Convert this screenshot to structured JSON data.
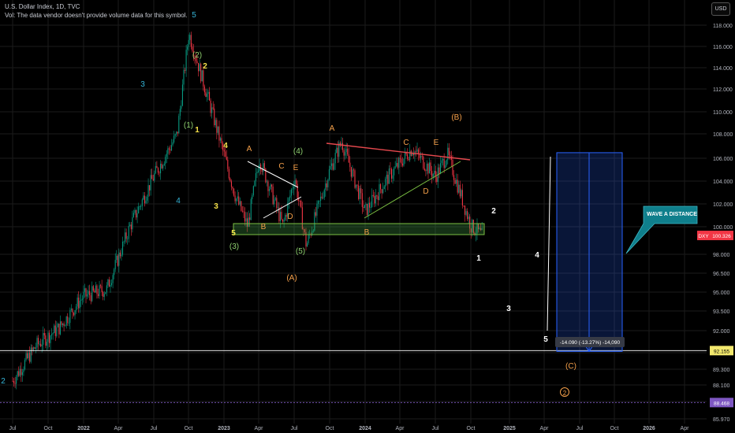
{
  "header": {
    "title": "U.S. Dollar Index, 1D, TVC",
    "volume_note": "Vol: The data vendor doesn't provide volume data for this symbol."
  },
  "currency_button": "USD",
  "colors": {
    "background": "#000000",
    "grid": "#1b1b1b",
    "axis_text": "#b2b5be",
    "candle_up": "#089981",
    "candle_down": "#f23645",
    "orange": "#f5a04a",
    "yellow": "#f7e34b",
    "green": "#8fd16f",
    "cyan": "#35b5d8",
    "red_line": "#e5484d",
    "support_zone": "#7bc043",
    "measure_box": "#2962ff",
    "callout": "#0f7f8c",
    "dxy_label": "#f23645",
    "price_label": "#f2e86d",
    "dotted_line": "#7e57c2"
  },
  "chart_data": {
    "type": "candlestick",
    "symbol": "DXY",
    "x_ticks": [
      "Jul",
      "Oct",
      "2022",
      "Apr",
      "Jul",
      "Oct",
      "2023",
      "Apr",
      "Jul",
      "Oct",
      "2024",
      "Apr",
      "Jul",
      "Oct",
      "2025",
      "Apr",
      "Jul",
      "Oct",
      "2026",
      "Apr"
    ],
    "y_ticks": [
      "118.000",
      "116.000",
      "114.000",
      "112.000",
      "110.000",
      "108.000",
      "106.000",
      "104.000",
      "102.000",
      "100.000",
      "98.000",
      "96.500",
      "95.000",
      "93.500",
      "92.000",
      "90.500",
      "89.300",
      "88.100",
      "87.000",
      "85.970"
    ],
    "y_range": [
      85.97,
      118.0
    ],
    "price_path": [
      {
        "date": "2021-06",
        "price": 90.0
      },
      {
        "date": "2021-08",
        "price": 92.5
      },
      {
        "date": "2021-10",
        "price": 93.8
      },
      {
        "date": "2021-12",
        "price": 96.0
      },
      {
        "date": "2022-02",
        "price": 96.5
      },
      {
        "date": "2022-04",
        "price": 101.0
      },
      {
        "date": "2022-06",
        "price": 104.5
      },
      {
        "date": "2022-08",
        "price": 107.5
      },
      {
        "date": "2022-09",
        "price": 114.7
      },
      {
        "date": "2022-11",
        "price": 109.0
      },
      {
        "date": "2023-01",
        "price": 103.0
      },
      {
        "date": "2023-02",
        "price": 101.0
      },
      {
        "date": "2023-03",
        "price": 105.8
      },
      {
        "date": "2023-05",
        "price": 101.0
      },
      {
        "date": "2023-06",
        "price": 104.5
      },
      {
        "date": "2023-07",
        "price": 99.6
      },
      {
        "date": "2023-09",
        "price": 105.0
      },
      {
        "date": "2023-10",
        "price": 107.0
      },
      {
        "date": "2023-12",
        "price": 102.0
      },
      {
        "date": "2024-02",
        "price": 104.5
      },
      {
        "date": "2024-04",
        "price": 106.5
      },
      {
        "date": "2024-06",
        "price": 104.5
      },
      {
        "date": "2024-07",
        "price": 106.1
      },
      {
        "date": "2024-09",
        "price": 101.0
      },
      {
        "date": "2024-10",
        "price": 100.3
      }
    ],
    "current_price": {
      "symbol": "DXY",
      "value": "100.326"
    },
    "price_labels": [
      "92.155",
      "88.468"
    ],
    "wave_labels": [
      {
        "text": "5",
        "color": "cyan"
      },
      {
        "text": "3",
        "color": "cyan"
      },
      {
        "text": "4",
        "color": "cyan"
      },
      {
        "text": "2",
        "color": "cyan"
      },
      {
        "text": "(2)",
        "color": "green"
      },
      {
        "text": "2",
        "color": "yellow"
      },
      {
        "text": "(1)",
        "color": "green"
      },
      {
        "text": "1",
        "color": "yellow"
      },
      {
        "text": "4",
        "color": "yellow"
      },
      {
        "text": "3",
        "color": "yellow"
      },
      {
        "text": "5",
        "color": "yellow"
      },
      {
        "text": "A",
        "color": "orange"
      },
      {
        "text": "C",
        "color": "orange"
      },
      {
        "text": "E",
        "color": "orange"
      },
      {
        "text": "B",
        "color": "orange"
      },
      {
        "text": "D",
        "color": "orange"
      },
      {
        "text": "(4)",
        "color": "green"
      },
      {
        "text": "(3)",
        "color": "green"
      },
      {
        "text": "(5)",
        "color": "green"
      },
      {
        "text": "(A)",
        "color": "orange"
      },
      {
        "text": "A",
        "color": "orange"
      },
      {
        "text": "C",
        "color": "orange"
      },
      {
        "text": "E",
        "color": "orange"
      },
      {
        "text": "B",
        "color": "orange"
      },
      {
        "text": "D",
        "color": "orange"
      },
      {
        "text": "(B)",
        "color": "orange"
      },
      {
        "text": "2",
        "color": "white"
      },
      {
        "text": "1",
        "color": "white"
      },
      {
        "text": "4",
        "color": "white"
      },
      {
        "text": "3",
        "color": "white"
      },
      {
        "text": "5",
        "color": "white"
      },
      {
        "text": "(C)",
        "color": "orange"
      },
      {
        "text": "2",
        "color": "orange"
      }
    ],
    "measurement": {
      "label": "-14.090 (-13.27%) -14,090",
      "top_price": 106.2,
      "bottom_price": 92.1
    },
    "callout": "WAVE A DISTANCE",
    "support_zone": {
      "top": 101.0,
      "bottom": 100.0
    }
  }
}
